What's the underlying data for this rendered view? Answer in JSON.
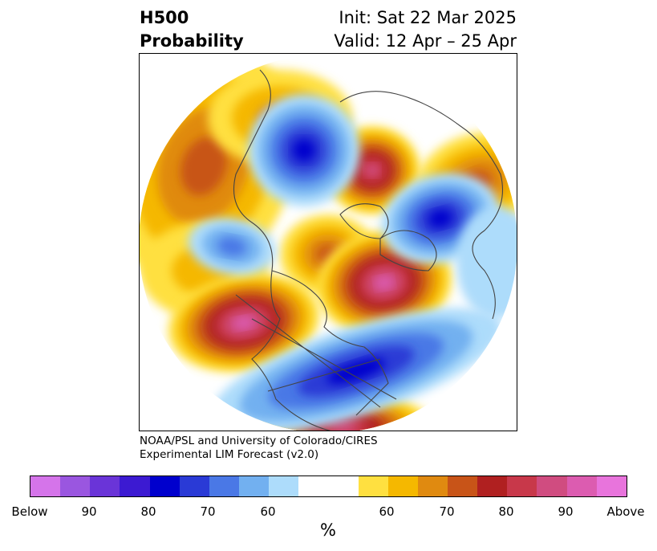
{
  "title": {
    "left_line1": "H500",
    "left_line2": "Probability",
    "right_line1": "Init: Sat 22 Mar 2025",
    "right_line2": "Valid: 12 Apr – 25 Apr"
  },
  "credit": {
    "line1": "NOAA/PSL and University of Colorado/CIRES",
    "line2": "Experimental LIM Forecast (v2.0)"
  },
  "colorbar": {
    "unit": "%",
    "colors": [
      "#d574ea",
      "#9a56e0",
      "#6a34d8",
      "#3c1ad2",
      "#0000cd",
      "#2a3ad6",
      "#4a78e6",
      "#72b0f0",
      "#addcfb",
      "#ffffff",
      "#ffffff",
      "#ffe040",
      "#f5b800",
      "#e08a10",
      "#c85418",
      "#b02020",
      "#c8384a",
      "#d04c80",
      "#dc5cb0",
      "#e874dc"
    ],
    "labels": [
      "Below",
      "90",
      "80",
      "70",
      "60",
      "60",
      "70",
      "80",
      "90",
      "Above"
    ]
  },
  "map": {
    "colors": {
      "blue_light": "#addcfb",
      "blue_mid": "#72b0f0",
      "blue": "#4a78e6",
      "blue_deep": "#2a3ad6",
      "blue_core": "#0000cd",
      "yellow": "#ffe040",
      "gold": "#f5b800",
      "orange": "#e08a10",
      "orange_dark": "#c85418",
      "red": "#b02020",
      "red_pink": "#c8384a",
      "pink": "#d04c80",
      "pink_core": "#dc5cb0",
      "coast": "#444444"
    }
  }
}
